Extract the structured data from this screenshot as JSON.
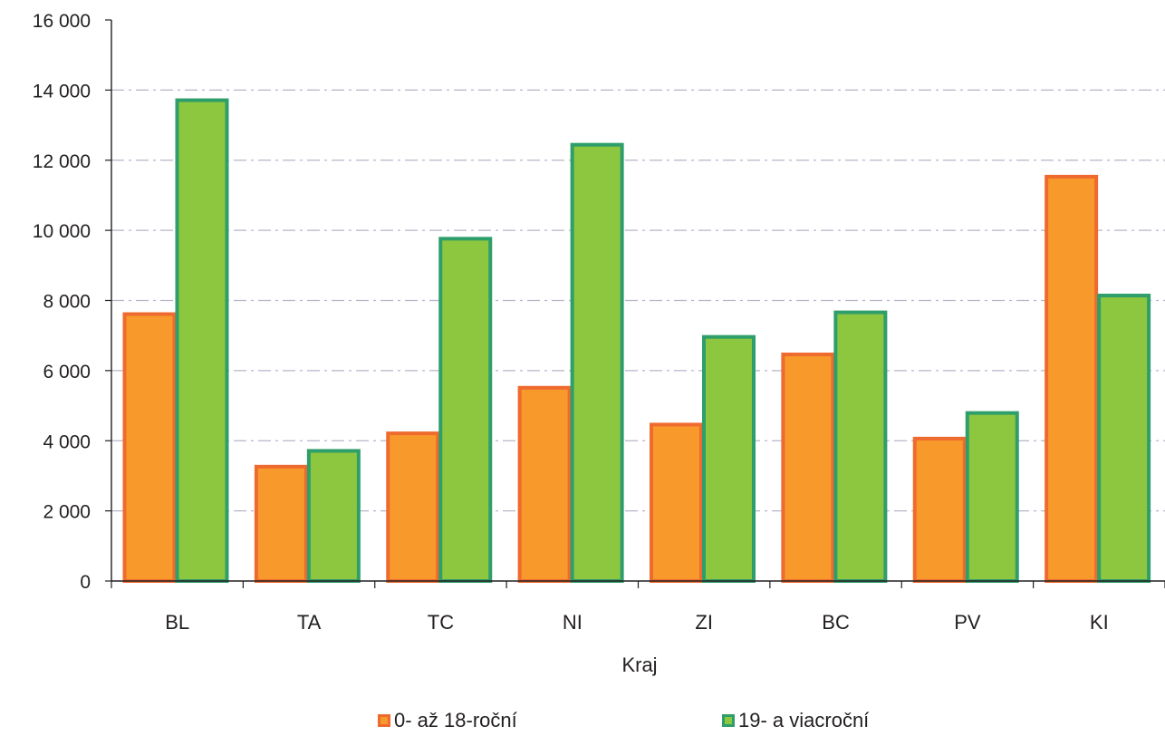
{
  "chart_data": {
    "type": "bar",
    "title": "",
    "xlabel": "Kraj",
    "ylabel": "",
    "categories": [
      "BL",
      "TA",
      "TC",
      "NI",
      "ZI",
      "BC",
      "PV",
      "KI"
    ],
    "series": [
      {
        "name": "0- až 18-roční",
        "values": [
          7650,
          3300,
          4250,
          5550,
          4500,
          6500,
          4100,
          11570
        ],
        "fill": "#f7992b",
        "stroke": "#ef6a2e"
      },
      {
        "name": "19- a viacroční",
        "values": [
          13750,
          3750,
          9800,
          12480,
          7000,
          7700,
          4830,
          8180
        ],
        "fill": "#8dc63f",
        "stroke": "#2e9e6b"
      }
    ],
    "ylim": [
      0,
      16000
    ],
    "yticks": [
      0,
      2000,
      4000,
      6000,
      8000,
      10000,
      12000,
      14000,
      16000
    ],
    "ytick_labels": [
      "0",
      "2 000",
      "4 000",
      "6 000",
      "8 000",
      "10 000",
      "12 000",
      "14 000",
      "16 000"
    ],
    "grid": true,
    "legend_position": "bottom"
  }
}
